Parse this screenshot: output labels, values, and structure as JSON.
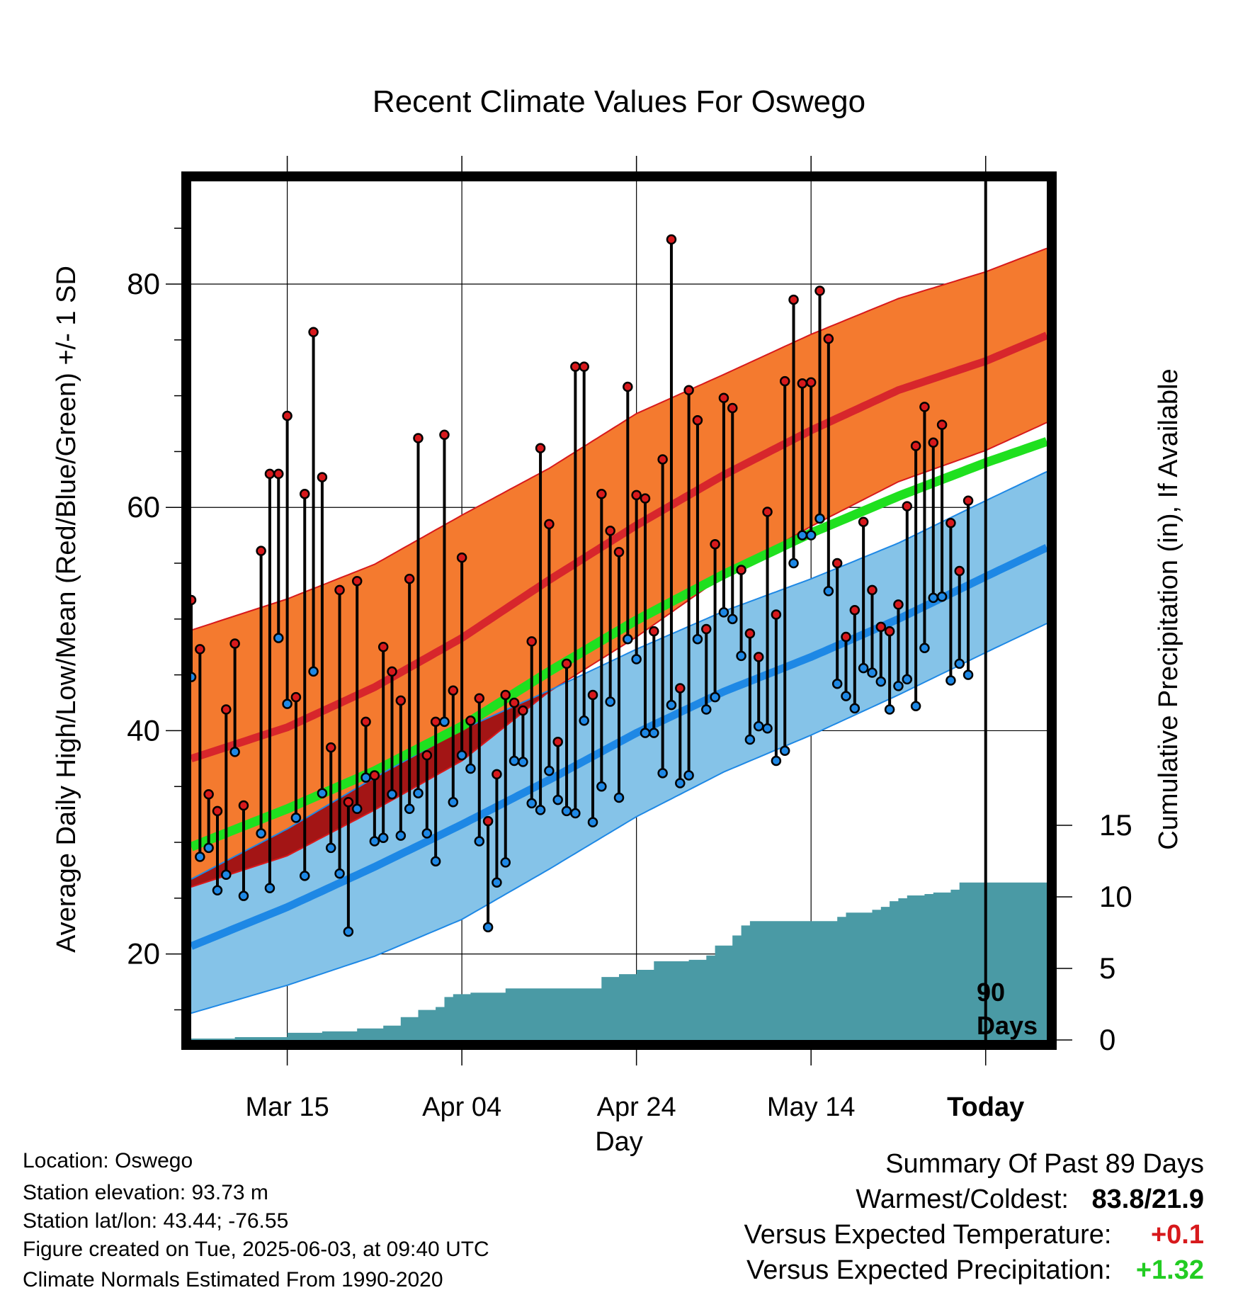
{
  "chart_data": {
    "type": "line",
    "title": "Recent Climate Values For Oswego",
    "xlabel": "Day",
    "ylabel": "Average Daily High/Low/Mean (Red/Blue/Green) +/- 1 SD",
    "y2label": "Cumulative Precipitation (in), If Available",
    "ylim": [
      12.3,
      89.2
    ],
    "y2lim": [
      0,
      60
    ],
    "y_ticks": [
      "20",
      "40",
      "60",
      "80"
    ],
    "y2_ticks": [
      "0",
      "5",
      "10",
      "15"
    ],
    "x_day_range": [
      -89,
      9
    ],
    "x_ticks": [
      {
        "day": -78,
        "label": "Mar 15"
      },
      {
        "day": -58,
        "label": "Apr 04"
      },
      {
        "day": -38,
        "label": "Apr 24"
      },
      {
        "day": -18,
        "label": "May 14"
      },
      {
        "day": 2,
        "label": "Today"
      }
    ],
    "grid": true,
    "today_marker": {
      "day": 2,
      "label_line1": "90",
      "label_line2": "Days"
    },
    "normals": {
      "days": [
        -89,
        -78,
        -68,
        -58,
        -48,
        -38,
        -28,
        -18,
        -8,
        2,
        9
      ],
      "high_mean": [
        37.5,
        40.3,
        43.9,
        48.3,
        53.5,
        58.4,
        62.9,
        66.9,
        70.5,
        73.1,
        75.4
      ],
      "high_sd": [
        11.5,
        11.5,
        11,
        11,
        10,
        10,
        9,
        8.6,
        8.2,
        8,
        7.8
      ],
      "avg_mean": [
        29.6,
        33,
        36.4,
        40.4,
        45.3,
        49.9,
        54,
        57.7,
        61,
        64,
        65.9
      ],
      "low_mean": [
        20.7,
        24.2,
        27.8,
        31.6,
        35.6,
        39.8,
        43.5,
        46.6,
        50,
        53.8,
        56.4
      ],
      "low_sd": [
        6,
        7,
        8,
        8.5,
        8,
        7.5,
        7.2,
        7,
        6.8,
        6.8,
        6.8
      ],
      "sd_overlap_color": "#a31515"
    },
    "series": [
      {
        "name": "High",
        "days": [
          -89,
          -88,
          -87,
          -86,
          -85,
          -84,
          -83,
          -81,
          -80,
          -79,
          -78,
          -77,
          -76,
          -75,
          -74,
          -73,
          -72,
          -71,
          -70,
          -69,
          -68,
          -67,
          -66,
          -65,
          -64,
          -63,
          -62,
          -61,
          -60,
          -59,
          -58,
          -57,
          -56,
          -55,
          -54,
          -53,
          -52,
          -51,
          -50,
          -49,
          -48,
          -47,
          -46,
          -45,
          -44,
          -43,
          -42,
          -41,
          -40,
          -39,
          -38,
          -37,
          -36,
          -35,
          -34,
          -33,
          -32,
          -31,
          -30,
          -29,
          -28,
          -27,
          -26,
          -25,
          -24,
          -23,
          -22,
          -21,
          -20,
          -19,
          -18,
          -17,
          -16,
          -15,
          -14,
          -13,
          -12,
          -11,
          -10,
          -9,
          -8,
          -7,
          -6,
          -5,
          -4,
          -3,
          -2,
          -1,
          0,
          1
        ],
        "values": [
          51.7,
          47.3,
          34.3,
          32.8,
          41.9,
          47.8,
          33.3,
          56.1,
          63,
          63,
          68.2,
          43,
          61.2,
          75.7,
          62.7,
          38.5,
          52.6,
          33.6,
          53.4,
          40.8,
          36,
          47.5,
          45.3,
          42.7,
          53.6,
          66.2,
          37.8,
          40.8,
          66.5,
          43.6,
          55.5,
          40.9,
          42.9,
          31.9,
          36.1,
          43.2,
          42.5,
          41.8,
          48,
          65.3,
          58.5,
          39,
          46,
          72.6,
          72.6,
          43.2,
          61.2,
          57.9,
          56,
          70.8,
          61.1,
          60.8,
          48.9,
          64.3,
          84,
          43.8,
          70.5,
          67.8,
          49.1,
          56.7,
          69.8,
          68.9,
          54.4,
          48.7,
          46.6,
          59.6,
          50.4,
          71.3,
          78.6,
          71.1,
          71.2,
          79.4,
          75.1,
          55,
          48.4,
          50.8,
          58.7,
          52.6,
          49.3,
          48.9,
          51.3,
          60.1,
          65.5,
          69,
          65.8,
          67.4,
          58.6,
          54.3,
          60.6,
          0
        ],
        "color": "#d7191c"
      },
      {
        "name": "Low",
        "days": [
          -89,
          -88,
          -87,
          -86,
          -85,
          -84,
          -83,
          -81,
          -80,
          -79,
          -78,
          -77,
          -76,
          -75,
          -74,
          -73,
          -72,
          -71,
          -70,
          -69,
          -68,
          -67,
          -66,
          -65,
          -64,
          -63,
          -62,
          -61,
          -60,
          -59,
          -58,
          -57,
          -56,
          -55,
          -54,
          -53,
          -52,
          -51,
          -50,
          -49,
          -48,
          -47,
          -46,
          -45,
          -44,
          -43,
          -42,
          -41,
          -40,
          -39,
          -38,
          -37,
          -36,
          -35,
          -34,
          -33,
          -32,
          -31,
          -30,
          -29,
          -28,
          -27,
          -26,
          -25,
          -24,
          -23,
          -22,
          -21,
          -20,
          -19,
          -18,
          -17,
          -16,
          -15,
          -14,
          -13,
          -12,
          -11,
          -10,
          -9,
          -8,
          -7,
          -6,
          -5,
          -4,
          -3,
          -2,
          -1,
          0,
          1
        ],
        "values": [
          44.8,
          28.7,
          29.5,
          25.7,
          27.1,
          38.1,
          25.2,
          30.8,
          25.9,
          48.3,
          42.4,
          32.2,
          27,
          45.3,
          34.4,
          29.5,
          27.2,
          22,
          33,
          35.8,
          30.1,
          30.4,
          34.3,
          30.6,
          33,
          34.4,
          30.8,
          28.3,
          40.8,
          33.6,
          37.8,
          36.6,
          30.1,
          22.4,
          26.4,
          28.2,
          37.3,
          37.2,
          33.5,
          32.9,
          36.4,
          33.8,
          32.8,
          32.6,
          40.9,
          31.8,
          35,
          42.6,
          34,
          48.2,
          46.4,
          39.8,
          39.8,
          36.2,
          42.3,
          35.3,
          36,
          48.2,
          41.9,
          43,
          50.6,
          50,
          46.7,
          39.2,
          40.4,
          40.2,
          37.3,
          38.2,
          55,
          57.5,
          57.5,
          59,
          52.5,
          44.2,
          43.1,
          42,
          45.6,
          45.2,
          44.4,
          41.9,
          44,
          44.6,
          42.2,
          47.4,
          51.9,
          52,
          44.5,
          46,
          45,
          0
        ],
        "color": "#1e88e5"
      }
    ],
    "precipitation": {
      "days": [
        -89,
        -84,
        -80,
        -78,
        -74,
        -70,
        -67,
        -65,
        -63,
        -61,
        -60,
        -59,
        -57,
        -55,
        -53,
        -50,
        -49,
        -44,
        -42,
        -40,
        -38,
        -36,
        -35,
        -32,
        -30,
        -29,
        -27,
        -26,
        -25,
        -20,
        -19,
        -18,
        -17,
        -16,
        -15,
        -14,
        -13,
        -11,
        -10,
        -9,
        -8,
        -7,
        -5,
        -4,
        -2,
        -1,
        9
      ],
      "values": [
        0.1,
        0.2,
        0.2,
        0.5,
        0.6,
        0.8,
        1,
        1.6,
        2.1,
        2.3,
        3,
        3.2,
        3.3,
        3.3,
        3.6,
        3.6,
        3.6,
        3.6,
        4.4,
        4.6,
        4.9,
        5.5,
        5.5,
        5.6,
        5.9,
        6.6,
        7.3,
        8,
        8.3,
        8.3,
        8.3,
        8.3,
        8.3,
        8.3,
        8.6,
        8.9,
        8.9,
        9.1,
        9.3,
        9.7,
        9.9,
        10.1,
        10.2,
        10.3,
        10.5,
        11,
        11
      ],
      "color": "#4a9aa5"
    }
  },
  "info": {
    "location": "Location: Oswego",
    "elevation": "Station elevation: 93.73 m",
    "latlon": "Station lat/lon: 43.44; -76.55",
    "created": "Figure created on Tue, 2025-06-03, at 09:40 UTC",
    "normals": "Climate Normals Estimated From 1990-2020"
  },
  "summary": {
    "title": "Summary Of Past 89 Days",
    "warmest_label": "Warmest/Coldest:",
    "warmest_value": "83.8/21.9",
    "temp_label": "Versus Expected Temperature:",
    "temp_value": "+0.1",
    "temp_color": "#d7191c",
    "precip_label": "Versus Expected Precipitation:",
    "precip_value": "+1.32",
    "precip_color": "#22cc22"
  }
}
